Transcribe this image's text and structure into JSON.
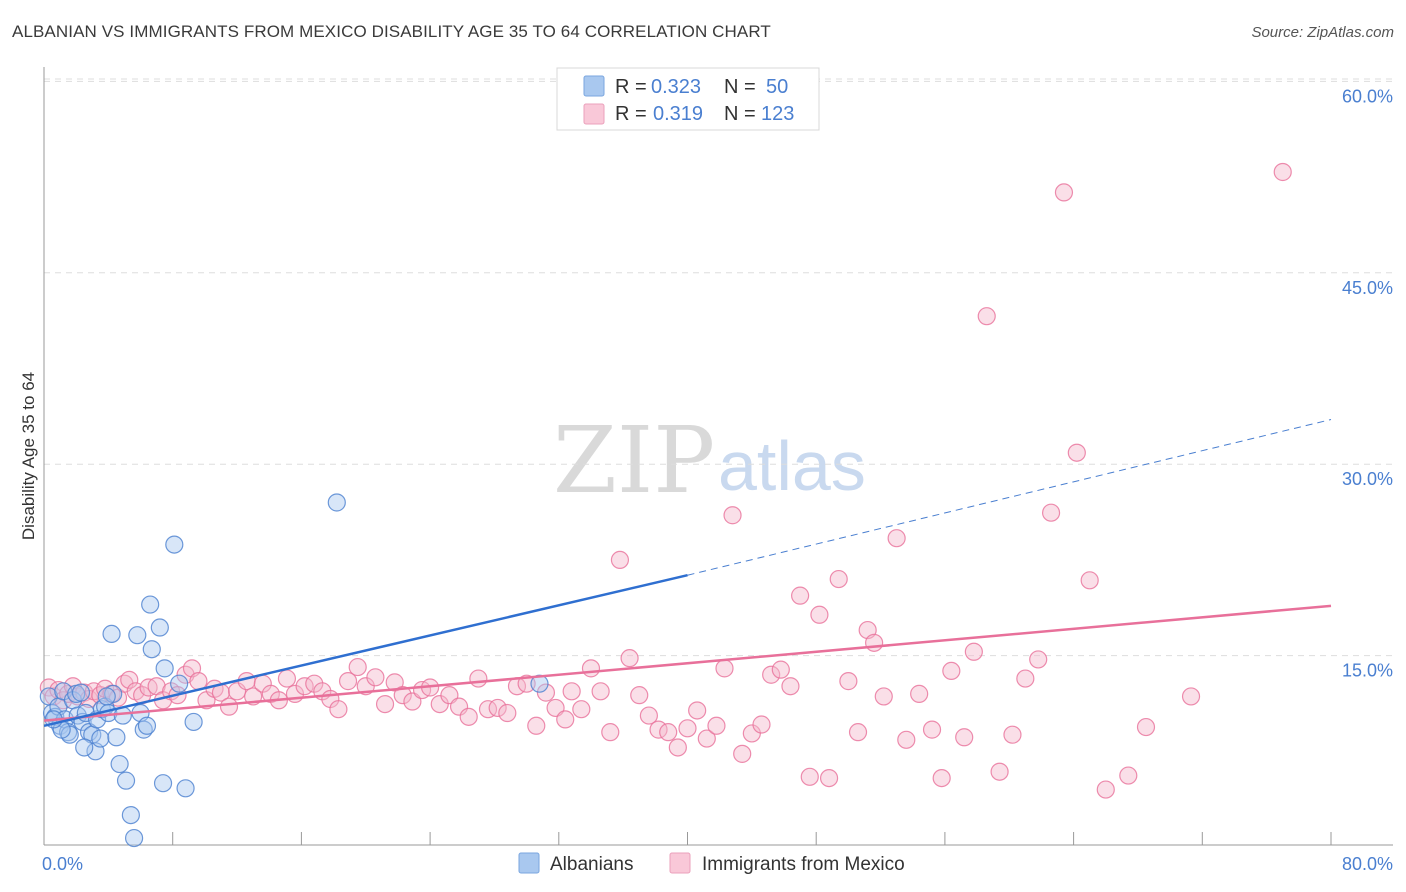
{
  "title": "ALBANIAN VS IMMIGRANTS FROM MEXICO DISABILITY AGE 35 TO 64 CORRELATION CHART",
  "source": "Source: ZipAtlas.com",
  "watermark": {
    "zip": "ZIP",
    "atlas": "atlas"
  },
  "colors": {
    "blue": "#4a7fd0",
    "blue_fill": "#a9c8ef",
    "pink": "#e8709a",
    "pink_fill": "#f4b8cc",
    "grid": "#dddddd"
  },
  "legend": {
    "rows": [
      {
        "r_label": "R =",
        "r_value": "0.323",
        "n_label": "N =",
        "n_value": "50"
      },
      {
        "r_label": "R =",
        "r_value": "0.319",
        "n_label": "N =",
        "n_value": "123"
      }
    ]
  },
  "chart_data": {
    "type": "scatter",
    "ylabel": "Disability Age 35 to 64",
    "xlim": [
      0,
      80
    ],
    "ylim": [
      0,
      60
    ],
    "y_ticks": [
      {
        "value": 15,
        "label": "15.0%"
      },
      {
        "value": 30,
        "label": "30.0%"
      },
      {
        "value": 45,
        "label": "45.0%"
      },
      {
        "value": 60,
        "label": "60.0%"
      }
    ],
    "x_tick_labels": {
      "left": "0.0%",
      "right": "80.0%"
    },
    "x_tick_values": [
      0,
      8,
      16,
      24,
      32,
      40,
      48,
      56,
      64,
      72,
      80
    ],
    "grid": "horizontal dashed",
    "legend_position": "top-center",
    "series": [
      {
        "name": "Albanians",
        "color": "#4a7fd0",
        "trend": {
          "x0": 0,
          "y0": 9.5,
          "x1": 40,
          "y1": 21.3,
          "dashed_to_x": 80,
          "dashed_to_y": 33.5
        },
        "points": [
          [
            0.3,
            11.8
          ],
          [
            0.5,
            10.5
          ],
          [
            0.7,
            10.2
          ],
          [
            0.9,
            11.0
          ],
          [
            1.0,
            9.5
          ],
          [
            1.2,
            12.2
          ],
          [
            1.3,
            10.0
          ],
          [
            1.5,
            9.0
          ],
          [
            1.6,
            8.8
          ],
          [
            1.8,
            11.5
          ],
          [
            2.0,
            12.0
          ],
          [
            2.1,
            10.3
          ],
          [
            2.3,
            12.1
          ],
          [
            2.4,
            9.8
          ],
          [
            2.6,
            10.5
          ],
          [
            2.8,
            9.0
          ],
          [
            3.0,
            8.8
          ],
          [
            3.2,
            7.5
          ],
          [
            3.3,
            10.0
          ],
          [
            3.5,
            8.5
          ],
          [
            3.6,
            10.8
          ],
          [
            3.8,
            11.0
          ],
          [
            4.0,
            10.5
          ],
          [
            4.2,
            16.7
          ],
          [
            4.3,
            12.0
          ],
          [
            4.5,
            8.6
          ],
          [
            4.7,
            6.5
          ],
          [
            4.9,
            10.3
          ],
          [
            5.1,
            5.2
          ],
          [
            5.4,
            2.5
          ],
          [
            5.6,
            0.7
          ],
          [
            5.8,
            16.6
          ],
          [
            6.0,
            10.5
          ],
          [
            6.2,
            9.2
          ],
          [
            6.4,
            9.5
          ],
          [
            6.6,
            19.0
          ],
          [
            6.7,
            15.5
          ],
          [
            7.2,
            17.2
          ],
          [
            7.4,
            5.0
          ],
          [
            7.5,
            14.0
          ],
          [
            8.1,
            23.7
          ],
          [
            8.4,
            12.8
          ],
          [
            8.8,
            4.6
          ],
          [
            9.3,
            9.8
          ],
          [
            18.2,
            27.0
          ],
          [
            30.8,
            12.8
          ],
          [
            1.1,
            9.2
          ],
          [
            2.5,
            7.8
          ],
          [
            3.9,
            11.8
          ],
          [
            0.6,
            10.0
          ]
        ]
      },
      {
        "name": "Immigrants from Mexico",
        "color": "#e8709a",
        "trend": {
          "x0": 0,
          "y0": 9.9,
          "x1": 80,
          "y1": 18.9
        },
        "points": [
          [
            0.3,
            12.5
          ],
          [
            0.6,
            11.8
          ],
          [
            0.9,
            12.3
          ],
          [
            1.2,
            11.5
          ],
          [
            1.5,
            12.0
          ],
          [
            1.8,
            12.6
          ],
          [
            2.1,
            11.8
          ],
          [
            2.5,
            12.1
          ],
          [
            2.8,
            11.6
          ],
          [
            3.1,
            12.2
          ],
          [
            3.5,
            11.9
          ],
          [
            3.8,
            12.4
          ],
          [
            4.2,
            12.0
          ],
          [
            4.6,
            11.7
          ],
          [
            5.0,
            12.8
          ],
          [
            5.3,
            13.1
          ],
          [
            5.7,
            12.2
          ],
          [
            6.1,
            11.9
          ],
          [
            6.5,
            12.5
          ],
          [
            7.0,
            12.6
          ],
          [
            7.4,
            11.5
          ],
          [
            7.9,
            12.2
          ],
          [
            8.3,
            11.9
          ],
          [
            8.8,
            13.5
          ],
          [
            9.2,
            14.0
          ],
          [
            9.6,
            13.0
          ],
          [
            10.1,
            11.5
          ],
          [
            10.6,
            12.4
          ],
          [
            11.0,
            12.1
          ],
          [
            11.5,
            11.0
          ],
          [
            12.0,
            12.2
          ],
          [
            12.6,
            13.0
          ],
          [
            13.0,
            11.8
          ],
          [
            13.6,
            12.8
          ],
          [
            14.1,
            12.0
          ],
          [
            14.6,
            11.5
          ],
          [
            15.1,
            13.2
          ],
          [
            15.6,
            12.0
          ],
          [
            16.2,
            12.6
          ],
          [
            16.8,
            12.8
          ],
          [
            17.3,
            12.2
          ],
          [
            17.8,
            11.6
          ],
          [
            18.3,
            10.8
          ],
          [
            18.9,
            13.0
          ],
          [
            19.5,
            14.1
          ],
          [
            20.0,
            12.6
          ],
          [
            20.6,
            13.3
          ],
          [
            21.2,
            11.2
          ],
          [
            21.8,
            12.9
          ],
          [
            22.3,
            11.9
          ],
          [
            22.9,
            11.4
          ],
          [
            23.5,
            12.3
          ],
          [
            24.0,
            12.5
          ],
          [
            24.6,
            11.2
          ],
          [
            25.2,
            11.9
          ],
          [
            25.8,
            11.0
          ],
          [
            26.4,
            10.2
          ],
          [
            27.0,
            13.2
          ],
          [
            27.6,
            10.8
          ],
          [
            28.2,
            10.9
          ],
          [
            28.8,
            10.5
          ],
          [
            29.4,
            12.6
          ],
          [
            30.0,
            12.8
          ],
          [
            30.6,
            9.5
          ],
          [
            31.2,
            12.1
          ],
          [
            31.8,
            10.9
          ],
          [
            32.4,
            10.0
          ],
          [
            32.8,
            12.2
          ],
          [
            33.4,
            10.8
          ],
          [
            34.0,
            14.0
          ],
          [
            34.6,
            12.2
          ],
          [
            35.2,
            9.0
          ],
          [
            35.8,
            22.5
          ],
          [
            36.4,
            14.8
          ],
          [
            37.0,
            11.9
          ],
          [
            37.6,
            10.3
          ],
          [
            38.2,
            9.2
          ],
          [
            38.8,
            9.0
          ],
          [
            39.4,
            7.8
          ],
          [
            40.0,
            9.3
          ],
          [
            40.6,
            10.7
          ],
          [
            41.2,
            8.5
          ],
          [
            41.8,
            9.5
          ],
          [
            42.3,
            14.0
          ],
          [
            42.8,
            26.0
          ],
          [
            43.4,
            7.3
          ],
          [
            44.0,
            8.9
          ],
          [
            44.6,
            9.6
          ],
          [
            45.2,
            13.5
          ],
          [
            45.8,
            13.9
          ],
          [
            46.4,
            12.6
          ],
          [
            47.0,
            19.7
          ],
          [
            47.6,
            5.5
          ],
          [
            48.2,
            18.2
          ],
          [
            48.8,
            5.4
          ],
          [
            49.4,
            21.0
          ],
          [
            50.0,
            13.0
          ],
          [
            50.6,
            9.0
          ],
          [
            51.2,
            17.0
          ],
          [
            51.6,
            16.0
          ],
          [
            52.2,
            11.8
          ],
          [
            53.0,
            24.2
          ],
          [
            53.6,
            8.4
          ],
          [
            54.4,
            12.0
          ],
          [
            55.2,
            9.2
          ],
          [
            55.8,
            5.4
          ],
          [
            56.4,
            13.8
          ],
          [
            57.2,
            8.6
          ],
          [
            57.8,
            15.3
          ],
          [
            58.6,
            41.6
          ],
          [
            59.4,
            5.9
          ],
          [
            60.2,
            8.8
          ],
          [
            61.0,
            13.2
          ],
          [
            61.8,
            14.7
          ],
          [
            62.6,
            26.2
          ],
          [
            63.4,
            51.3
          ],
          [
            64.2,
            30.9
          ],
          [
            65.0,
            20.9
          ],
          [
            67.4,
            5.6
          ],
          [
            71.3,
            11.8
          ],
          [
            77.0,
            52.9
          ],
          [
            66.0,
            4.5
          ],
          [
            68.5,
            9.4
          ]
        ]
      }
    ]
  }
}
